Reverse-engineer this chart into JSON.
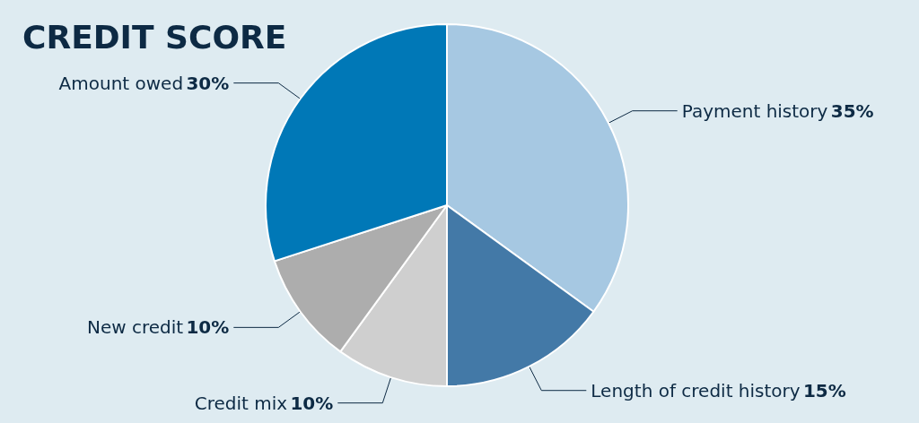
{
  "chart_data": {
    "type": "pie",
    "title": "CREDIT SCORE",
    "categories": [
      "Payment history",
      "Length of credit history",
      "Credit mix",
      "New credit",
      "Amount owed"
    ],
    "values": [
      35,
      15,
      10,
      10,
      30
    ],
    "value_labels": [
      "35%",
      "15%",
      "10%",
      "10%",
      "30%"
    ],
    "colors": [
      "#a6c8e2",
      "#4379a7",
      "#cfcfcf",
      "#adadad",
      "#0078b7"
    ],
    "legend": false
  }
}
